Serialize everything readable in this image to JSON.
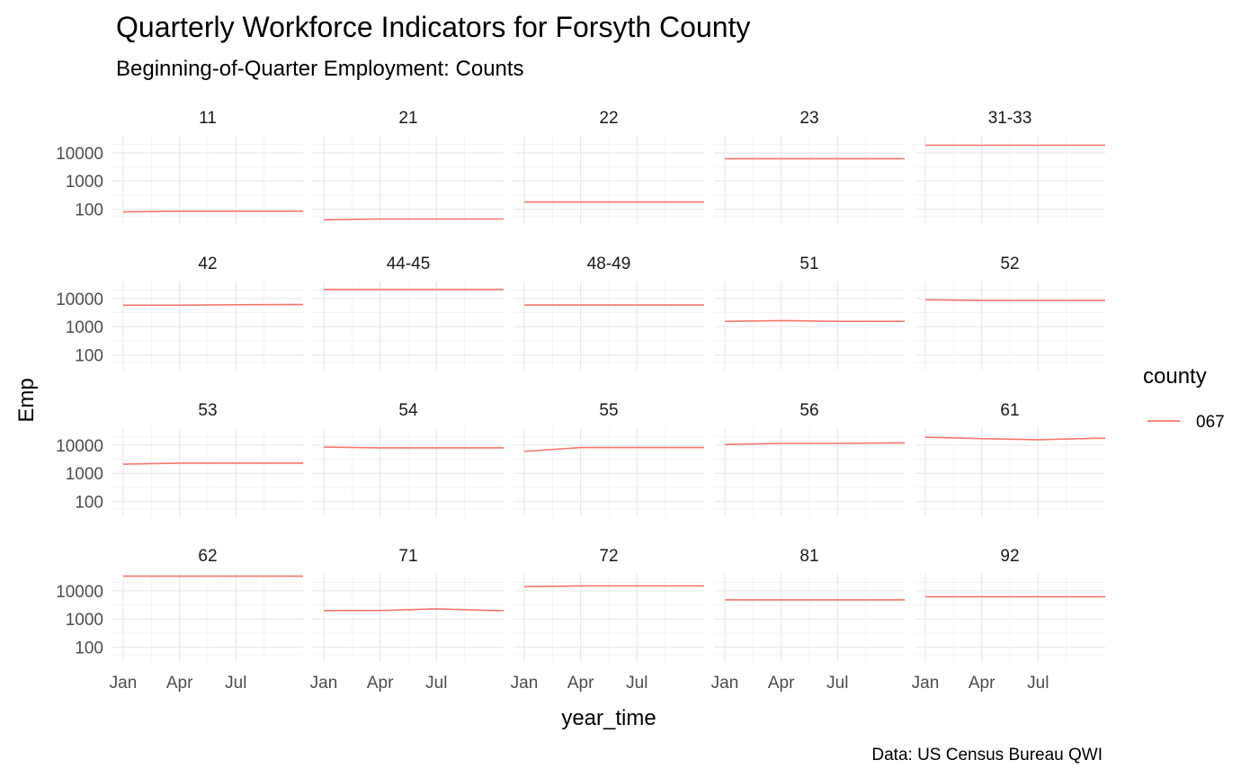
{
  "chart_data": {
    "type": "line",
    "title": "Quarterly Workforce Indicators for Forsyth County",
    "subtitle": "Beginning-of-Quarter Employment: Counts",
    "xlabel": "year_time",
    "ylabel": "Emp",
    "caption": "Data: US Census Bureau QWI",
    "y_scale": "log10",
    "ylim": [
      30,
      40000
    ],
    "x_ticks": [
      1,
      4,
      7
    ],
    "x_tick_labels": [
      "Jan",
      "Apr",
      "Jul"
    ],
    "xlim": [
      1,
      10
    ],
    "y_ticks": [
      100,
      1000,
      10000
    ],
    "y_tick_labels": [
      "100",
      "1000",
      "10000"
    ],
    "grid": true,
    "facets_ncol": 5,
    "legend": {
      "title": "county",
      "position": "right",
      "entries": [
        {
          "label": "067",
          "color": "#F8766D"
        }
      ]
    },
    "x": [
      1,
      4,
      7,
      10
    ],
    "series": [
      {
        "facet": "11",
        "values": [
          80,
          85,
          85,
          85
        ]
      },
      {
        "facet": "21",
        "values": [
          42,
          45,
          45,
          45
        ]
      },
      {
        "facet": "22",
        "values": [
          180,
          180,
          180,
          180
        ]
      },
      {
        "facet": "23",
        "values": [
          6200,
          6200,
          6200,
          6200
        ]
      },
      {
        "facet": "31-33",
        "values": [
          18500,
          18500,
          18500,
          18500
        ]
      },
      {
        "facet": "42",
        "values": [
          5800,
          5800,
          6000,
          6100
        ]
      },
      {
        "facet": "44-45",
        "values": [
          21000,
          21000,
          21000,
          21000
        ]
      },
      {
        "facet": "48-49",
        "values": [
          5900,
          5900,
          5900,
          5900
        ]
      },
      {
        "facet": "51",
        "values": [
          1550,
          1650,
          1550,
          1550
        ]
      },
      {
        "facet": "52",
        "values": [
          9000,
          8500,
          8500,
          8500
        ]
      },
      {
        "facet": "53",
        "values": [
          2100,
          2300,
          2300,
          2300
        ]
      },
      {
        "facet": "54",
        "values": [
          8500,
          8000,
          8000,
          8000
        ]
      },
      {
        "facet": "55",
        "values": [
          6000,
          8200,
          8200,
          8200
        ]
      },
      {
        "facet": "56",
        "values": [
          10500,
          11500,
          11500,
          12000
        ]
      },
      {
        "facet": "61",
        "values": [
          19000,
          17000,
          15500,
          17500
        ]
      },
      {
        "facet": "62",
        "values": [
          33000,
          33000,
          33000,
          33000
        ]
      },
      {
        "facet": "71",
        "values": [
          2000,
          2000,
          2300,
          2000
        ]
      },
      {
        "facet": "72",
        "values": [
          14000,
          15000,
          15000,
          15000
        ]
      },
      {
        "facet": "81",
        "values": [
          4800,
          4800,
          4800,
          4800
        ]
      },
      {
        "facet": "92",
        "values": [
          6200,
          6200,
          6200,
          6200
        ]
      }
    ]
  }
}
